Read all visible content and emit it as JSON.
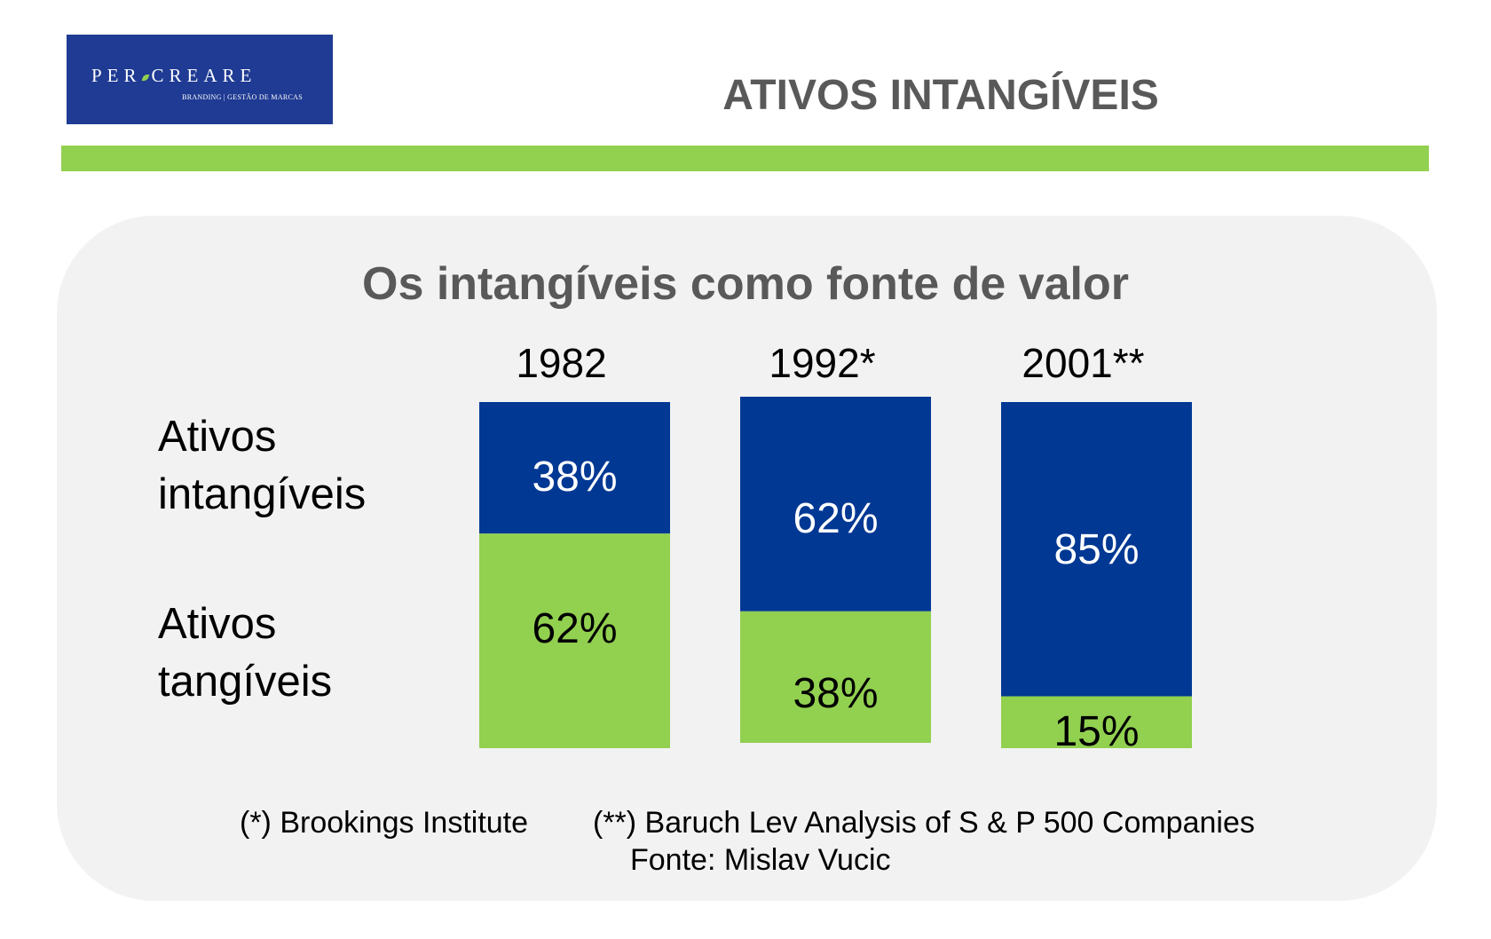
{
  "logo": {
    "name_part1": "PER",
    "name_part2": "CREARE",
    "tagline": "BRANDING | GESTÃO DE MARCAS",
    "leaf_icon": "leaf-icon"
  },
  "header": {
    "title": "ATIVOS INTANGÍVEIS"
  },
  "colors": {
    "intangible": "#003893",
    "tangible": "#92d050",
    "title_gray": "#595959",
    "panel": "#f2f2f2",
    "logo_bg": "#1f3b93"
  },
  "chart_data": {
    "type": "bar",
    "stacked": true,
    "title": "Os intangíveis como fonte de valor",
    "categories": [
      "1982",
      "1992*",
      "2001**"
    ],
    "series": [
      {
        "name": "Ativos intangíveis",
        "values": [
          38,
          62,
          85
        ],
        "labels": [
          "38%",
          "62%",
          "85%"
        ]
      },
      {
        "name": "Ativos tangíveis",
        "values": [
          62,
          38,
          15
        ],
        "labels": [
          "62%",
          "38%",
          "15%"
        ]
      }
    ],
    "unit": "%",
    "ylim": [
      0,
      100
    ],
    "grid": false
  },
  "legend": {
    "intangible_line1": "Ativos",
    "intangible_line2": "intangíveis",
    "tangible_line1": "Ativos",
    "tangible_line2": "tangíveis"
  },
  "footnotes": {
    "note1": "(*) Brookings Institute",
    "note2": "(**) Baruch Lev Analysis of S & P 500 Companies",
    "source": "Fonte: Mislav Vucic"
  }
}
